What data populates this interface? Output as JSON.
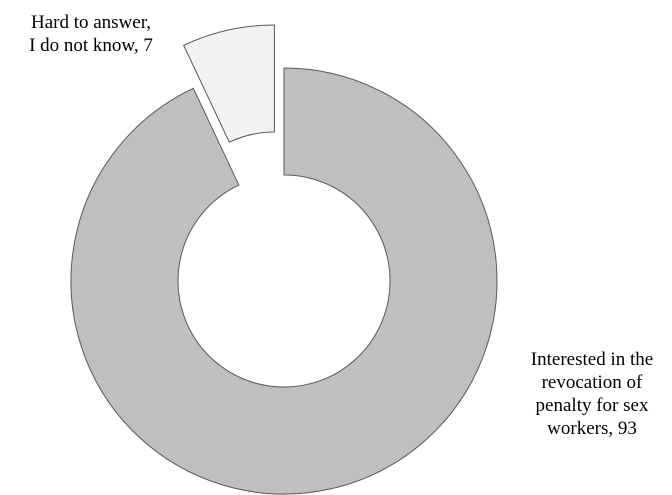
{
  "chart_data": {
    "type": "pie",
    "variant": "donut",
    "title": "",
    "slices": [
      {
        "label": "Interested in the revocation of penalty for sex workers",
        "value": 93,
        "label_lines": [
          "Interested in the",
          "revocation of",
          "penalty for sex",
          "workers, 93"
        ],
        "color": "#bfbfbf",
        "exploded": false
      },
      {
        "label": "Hard to answer, I do not know",
        "value": 7,
        "label_lines": [
          "Hard to answer,",
          "I do not know, 7"
        ],
        "color": "#f2f2f2",
        "exploded": true
      }
    ],
    "stroke_color": "#595959",
    "legend": "none"
  }
}
